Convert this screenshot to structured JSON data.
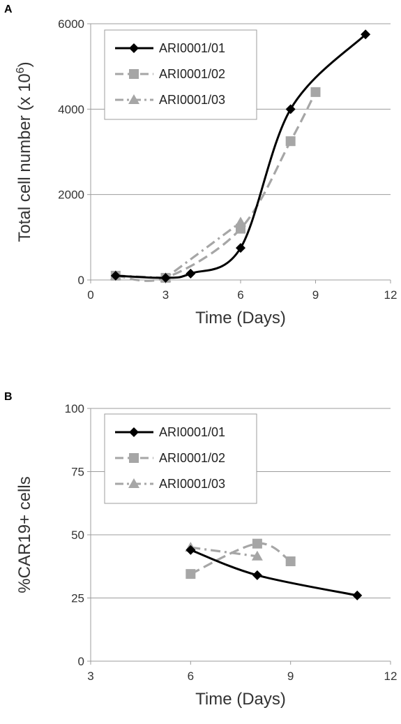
{
  "panels": [
    {
      "label": "A",
      "chart_data": {
        "type": "line",
        "xlabel": "Time (Days)",
        "ylabel_parts": [
          "Total cell number (x 10",
          "6",
          ")"
        ],
        "xlim": [
          0,
          12
        ],
        "ylim": [
          0,
          6000
        ],
        "xticks": [
          0,
          3,
          6,
          9,
          12
        ],
        "yticks": [
          0,
          2000,
          4000,
          6000
        ],
        "grid": "horizontal",
        "legend_position": "top-left",
        "series": [
          {
            "name": "ARI0001/01",
            "color": "#000000",
            "style": "solid",
            "marker": "diamond",
            "smooth": true,
            "points": [
              [
                1,
                100
              ],
              [
                3,
                50
              ],
              [
                4,
                150
              ],
              [
                6,
                750
              ],
              [
                8,
                4000
              ],
              [
                11,
                5750
              ]
            ]
          },
          {
            "name": "ARI0001/02",
            "color": "#a6a6a6",
            "style": "dashed",
            "marker": "square",
            "points": [
              [
                1,
                100
              ],
              [
                3,
                50
              ],
              [
                6,
                1200
              ],
              [
                8,
                3250
              ],
              [
                9,
                4400
              ]
            ]
          },
          {
            "name": "ARI0001/03",
            "color": "#a6a6a6",
            "style": "dashdot",
            "marker": "triangle",
            "points": [
              [
                1,
                100
              ],
              [
                3,
                50
              ],
              [
                6,
                1350
              ]
            ]
          }
        ]
      }
    },
    {
      "label": "B",
      "chart_data": {
        "type": "line",
        "xlabel": "Time (Days)",
        "ylabel_parts": [
          "%CAR19+ cells",
          "",
          ""
        ],
        "xlim": [
          3,
          12
        ],
        "ylim": [
          0,
          100
        ],
        "xticks": [
          3,
          6,
          9,
          12
        ],
        "yticks": [
          0,
          25,
          50,
          75,
          100
        ],
        "grid": "horizontal",
        "legend_position": "top-left",
        "series": [
          {
            "name": "ARI0001/01",
            "color": "#000000",
            "style": "solid",
            "marker": "diamond",
            "smooth": true,
            "points": [
              [
                6,
                44
              ],
              [
                8,
                34
              ],
              [
                11,
                26
              ]
            ]
          },
          {
            "name": "ARI0001/02",
            "color": "#a6a6a6",
            "style": "dashed",
            "marker": "square",
            "points": [
              [
                6,
                34.5
              ],
              [
                8,
                46.5
              ],
              [
                9,
                39.5
              ]
            ]
          },
          {
            "name": "ARI0001/03",
            "color": "#a6a6a6",
            "style": "dashdot",
            "marker": "triangle",
            "points": [
              [
                6,
                45
              ],
              [
                8,
                41.5
              ]
            ]
          }
        ]
      }
    }
  ]
}
